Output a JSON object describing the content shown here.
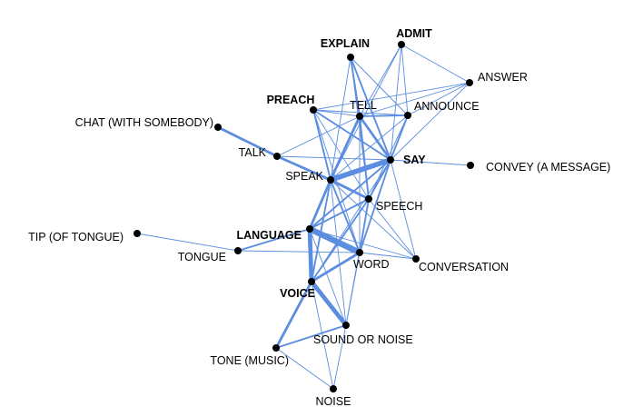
{
  "colors": {
    "edge": "#5b8de0",
    "node": "#000000",
    "background": "#ffffff"
  },
  "nodes": [
    {
      "id": "explain",
      "label": "EXPLAIN",
      "bold": true
    },
    {
      "id": "admit",
      "label": "ADMIT",
      "bold": true
    },
    {
      "id": "answer",
      "label": "ANSWER",
      "bold": false
    },
    {
      "id": "preach",
      "label": "PREACH",
      "bold": true
    },
    {
      "id": "tell",
      "label": "TELL",
      "bold": false
    },
    {
      "id": "announce",
      "label": "ANNOUNCE",
      "bold": false
    },
    {
      "id": "chat",
      "label": "CHAT (WITH SOMEBODY)",
      "bold": false
    },
    {
      "id": "talk",
      "label": "TALK",
      "bold": false
    },
    {
      "id": "say",
      "label": "SAY",
      "bold": true
    },
    {
      "id": "convey",
      "label": "CONVEY (A MESSAGE)",
      "bold": false
    },
    {
      "id": "speak",
      "label": "SPEAK",
      "bold": false
    },
    {
      "id": "speech",
      "label": "SPEECH",
      "bold": false
    },
    {
      "id": "tip",
      "label": "TIP (OF TONGUE)",
      "bold": false
    },
    {
      "id": "language",
      "label": "LANGUAGE",
      "bold": true
    },
    {
      "id": "tongue",
      "label": "TONGUE",
      "bold": false
    },
    {
      "id": "word",
      "label": "WORD",
      "bold": false
    },
    {
      "id": "conversation",
      "label": "CONVERSATION",
      "bold": false
    },
    {
      "id": "voice",
      "label": "VOICE",
      "bold": true
    },
    {
      "id": "sound",
      "label": "SOUND OR NOISE",
      "bold": false
    },
    {
      "id": "tone",
      "label": "TONE (MUSIC)",
      "bold": false
    },
    {
      "id": "noise",
      "label": "NOISE",
      "bold": false
    }
  ],
  "edges": [
    [
      "explain",
      "tell",
      2
    ],
    [
      "explain",
      "speak",
      1
    ],
    [
      "explain",
      "say",
      2
    ],
    [
      "explain",
      "announce",
      1
    ],
    [
      "explain",
      "speech",
      1
    ],
    [
      "admit",
      "tell",
      1
    ],
    [
      "admit",
      "say",
      1
    ],
    [
      "admit",
      "announce",
      1
    ],
    [
      "admit",
      "answer",
      1
    ],
    [
      "admit",
      "speak",
      1
    ],
    [
      "answer",
      "tell",
      1
    ],
    [
      "answer",
      "say",
      1
    ],
    [
      "answer",
      "announce",
      1
    ],
    [
      "answer",
      "preach",
      1
    ],
    [
      "preach",
      "tell",
      1
    ],
    [
      "preach",
      "say",
      2
    ],
    [
      "preach",
      "speak",
      2
    ],
    [
      "preach",
      "speech",
      1
    ],
    [
      "preach",
      "announce",
      1
    ],
    [
      "preach",
      "word",
      1
    ],
    [
      "tell",
      "announce",
      2
    ],
    [
      "tell",
      "say",
      3
    ],
    [
      "tell",
      "speak",
      3
    ],
    [
      "tell",
      "speech",
      2
    ],
    [
      "tell",
      "talk",
      1
    ],
    [
      "tell",
      "word",
      1
    ],
    [
      "tell",
      "language",
      1
    ],
    [
      "announce",
      "say",
      2
    ],
    [
      "announce",
      "speak",
      1
    ],
    [
      "announce",
      "speech",
      1
    ],
    [
      "chat",
      "talk",
      3
    ],
    [
      "talk",
      "speak",
      3
    ],
    [
      "talk",
      "say",
      1
    ],
    [
      "talk",
      "speech",
      1
    ],
    [
      "say",
      "speak",
      6
    ],
    [
      "say",
      "convey",
      1
    ],
    [
      "say",
      "speech",
      2
    ],
    [
      "say",
      "word",
      2
    ],
    [
      "say",
      "language",
      2
    ],
    [
      "say",
      "voice",
      1
    ],
    [
      "say",
      "conversation",
      1
    ],
    [
      "speak",
      "speech",
      3
    ],
    [
      "speak",
      "language",
      3
    ],
    [
      "speak",
      "word",
      2
    ],
    [
      "speak",
      "voice",
      2
    ],
    [
      "speak",
      "conversation",
      1
    ],
    [
      "speak",
      "sound",
      1
    ],
    [
      "speech",
      "language",
      2
    ],
    [
      "speech",
      "word",
      2
    ],
    [
      "speech",
      "voice",
      2
    ],
    [
      "speech",
      "conversation",
      1
    ],
    [
      "speech",
      "sound",
      1
    ],
    [
      "tip",
      "tongue",
      1
    ],
    [
      "tongue",
      "language",
      2
    ],
    [
      "tongue",
      "word",
      1
    ],
    [
      "language",
      "word",
      7
    ],
    [
      "language",
      "voice",
      5
    ],
    [
      "language",
      "sound",
      1
    ],
    [
      "language",
      "conversation",
      1
    ],
    [
      "word",
      "voice",
      3
    ],
    [
      "word",
      "conversation",
      1
    ],
    [
      "word",
      "sound",
      1
    ],
    [
      "voice",
      "sound",
      5
    ],
    [
      "voice",
      "tone",
      3
    ],
    [
      "voice",
      "noise",
      1
    ],
    [
      "sound",
      "tone",
      2
    ],
    [
      "sound",
      "noise",
      1
    ],
    [
      "tone",
      "noise",
      1
    ]
  ]
}
